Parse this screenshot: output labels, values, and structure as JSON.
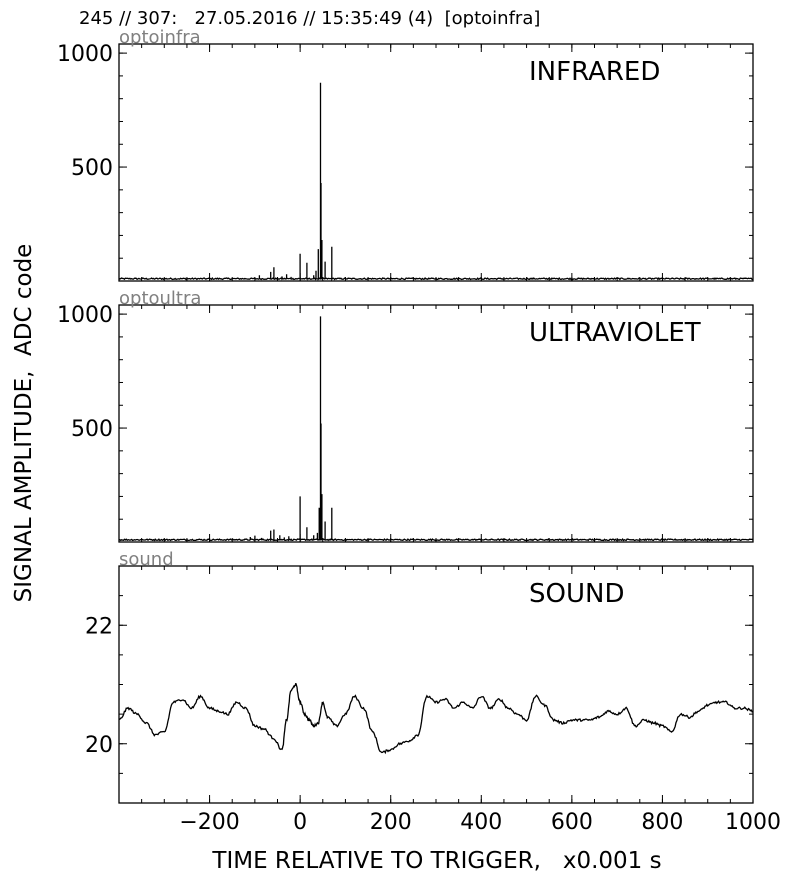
{
  "figure": {
    "title": "245 // 307:   27.05.2016 // 15:35:49 (4)  [optoinfra]",
    "ylabel": "SIGNAL AMPLITUDE,  ADC code",
    "xlabel": "TIME RELATIVE TO TRIGGER,   x0.001 s"
  },
  "chart_data": [
    {
      "type": "line",
      "corner_label": "optoinfra",
      "title": "INFRARED",
      "xlim": [
        -400,
        1000
      ],
      "ylim": [
        0,
        1040
      ],
      "yticks": [
        500,
        1000
      ],
      "baseline": 10,
      "peaks": [
        [
          -90,
          25
        ],
        [
          -65,
          40
        ],
        [
          -58,
          60
        ],
        [
          -40,
          20
        ],
        [
          -30,
          30
        ],
        [
          -20,
          18
        ],
        [
          0,
          120
        ],
        [
          15,
          80
        ],
        [
          30,
          25
        ],
        [
          35,
          45
        ],
        [
          40,
          140
        ],
        [
          45,
          870
        ],
        [
          46,
          430
        ],
        [
          48,
          180
        ],
        [
          55,
          85
        ],
        [
          70,
          150
        ]
      ]
    },
    {
      "type": "line",
      "corner_label": "optoultra",
      "title": "ULTRAVIOLET",
      "xlim": [
        -400,
        1000
      ],
      "ylim": [
        0,
        1040
      ],
      "yticks": [
        500,
        1000
      ],
      "baseline": 10,
      "peaks": [
        [
          -110,
          22
        ],
        [
          -100,
          28
        ],
        [
          -85,
          18
        ],
        [
          -65,
          50
        ],
        [
          -58,
          55
        ],
        [
          -45,
          30
        ],
        [
          -35,
          20
        ],
        [
          -25,
          25
        ],
        [
          0,
          200
        ],
        [
          15,
          65
        ],
        [
          30,
          30
        ],
        [
          38,
          40
        ],
        [
          42,
          150
        ],
        [
          45,
          990
        ],
        [
          46,
          520
        ],
        [
          48,
          210
        ],
        [
          55,
          90
        ],
        [
          70,
          150
        ]
      ]
    },
    {
      "type": "line",
      "corner_label": "sound",
      "title": "SOUND",
      "xlim": [
        -400,
        1000
      ],
      "ylim": [
        19,
        23
      ],
      "yticks": [
        20,
        22
      ],
      "x": [
        -400,
        -380,
        -360,
        -340,
        -320,
        -300,
        -280,
        -260,
        -240,
        -220,
        -200,
        -180,
        -160,
        -140,
        -120,
        -100,
        -80,
        -60,
        -40,
        -30,
        -20,
        -10,
        0,
        10,
        20,
        30,
        40,
        50,
        60,
        80,
        100,
        120,
        140,
        160,
        180,
        200,
        220,
        240,
        260,
        280,
        300,
        320,
        340,
        360,
        380,
        400,
        420,
        440,
        460,
        480,
        500,
        520,
        540,
        560,
        580,
        600,
        620,
        640,
        660,
        680,
        700,
        720,
        740,
        760,
        780,
        800,
        820,
        840,
        860,
        880,
        900,
        920,
        940,
        960,
        980,
        1000
      ],
      "y": [
        20.4,
        20.6,
        20.5,
        20.35,
        20.15,
        20.2,
        20.7,
        20.75,
        20.6,
        20.8,
        20.6,
        20.55,
        20.5,
        20.7,
        20.6,
        20.3,
        20.25,
        20.1,
        19.9,
        20.4,
        20.9,
        21.0,
        20.7,
        20.5,
        20.4,
        20.3,
        20.35,
        20.7,
        20.45,
        20.3,
        20.5,
        20.8,
        20.6,
        20.2,
        19.85,
        19.9,
        20.0,
        20.05,
        20.15,
        20.8,
        20.7,
        20.75,
        20.6,
        20.7,
        20.6,
        20.8,
        20.6,
        20.75,
        20.6,
        20.5,
        20.4,
        20.8,
        20.65,
        20.4,
        20.35,
        20.4,
        20.4,
        20.4,
        20.45,
        20.55,
        20.5,
        20.6,
        20.3,
        20.4,
        20.35,
        20.3,
        20.2,
        20.5,
        20.45,
        20.55,
        20.65,
        20.7,
        20.7,
        20.6,
        20.6,
        20.55
      ]
    }
  ],
  "xticks": [
    -200,
    0,
    200,
    400,
    600,
    800,
    1000
  ],
  "xtick_labels": [
    "−200",
    "0",
    "200",
    "400",
    "600",
    "800",
    "1000"
  ]
}
